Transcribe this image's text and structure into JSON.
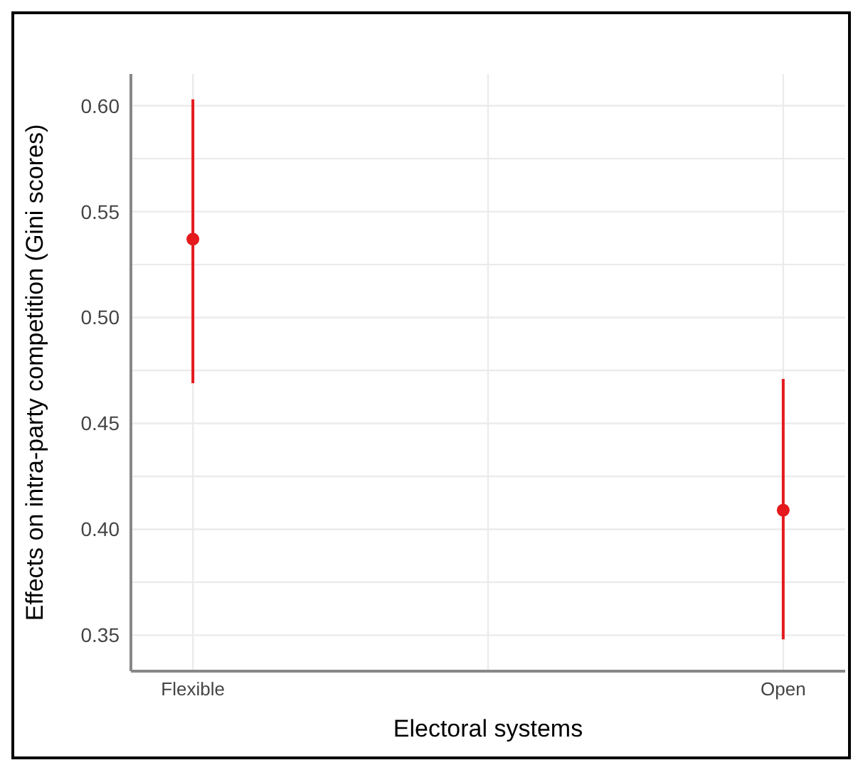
{
  "chart_data": {
    "type": "scatter",
    "xlabel": "Electoral systems",
    "ylabel": "Effects on intra-party competition (Gini scores)",
    "categories": [
      "Flexible",
      "Open"
    ],
    "series": [
      {
        "color": "#e41a1c",
        "values": [
          0.537,
          0.409
        ],
        "errors": [
          [
            0.469,
            0.603
          ],
          [
            0.348,
            0.471
          ]
        ]
      }
    ],
    "ylim": [
      0.333,
      0.615
    ],
    "yticks": [
      {
        "value": 0.35,
        "label": "0.35"
      },
      {
        "value": 0.4,
        "label": "0.40"
      },
      {
        "value": 0.45,
        "label": "0.45"
      },
      {
        "value": 0.5,
        "label": "0.50"
      },
      {
        "value": 0.55,
        "label": "0.55"
      },
      {
        "value": 0.6,
        "label": "0.60"
      }
    ],
    "grid": true,
    "marker": "circle",
    "legend": false
  }
}
